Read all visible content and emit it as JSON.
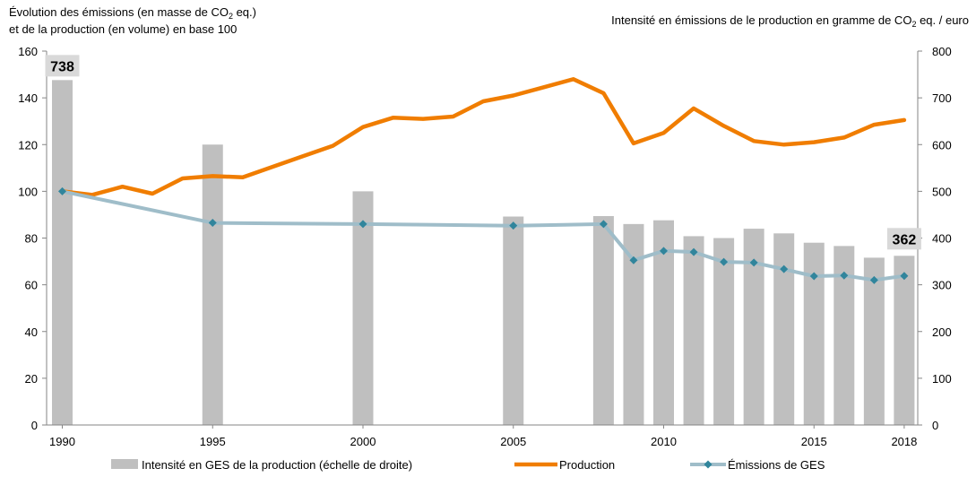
{
  "header": {
    "left_line1_pre": "Évolution  des émissions  (en masse de CO",
    "left_line1_sub": "2",
    "left_line1_post": " eq.)",
    "left_line2": "et de la production  (en volume)  en base 100",
    "right_pre": "Intensité  en émissions de le production  en gramme de CO",
    "right_sub": "2",
    "right_post": " eq.  / euro"
  },
  "chart_data": {
    "type": "bar+line",
    "x_tick_labels": [
      "1990",
      "1995",
      "2000",
      "2005",
      "2010",
      "2015",
      "2018"
    ],
    "left_axis": {
      "min": 0,
      "max": 160,
      "step": 20
    },
    "right_axis": {
      "min": 0,
      "max": 800,
      "step": 100
    },
    "bars": {
      "name": "Intensité en GES de la production (échelle de droite)",
      "axis": "right",
      "color": "#bfbfbf",
      "years": [
        1990,
        1995,
        2000,
        2005,
        2008,
        2009,
        2010,
        2011,
        2012,
        2013,
        2014,
        2015,
        2016,
        2017,
        2018
      ],
      "values": [
        738,
        600,
        500,
        446,
        447,
        430,
        438,
        404,
        400,
        420,
        410,
        390,
        383,
        358,
        362
      ]
    },
    "bar_callouts": [
      {
        "year": 1990,
        "label": "738"
      },
      {
        "year": 2018,
        "label": "362"
      }
    ],
    "lines": [
      {
        "name": "Production",
        "axis": "left",
        "color": "#f07d00",
        "markers": false,
        "years": [
          1990,
          1991,
          1992,
          1993,
          1994,
          1995,
          1996,
          1997,
          1998,
          1999,
          2000,
          2001,
          2002,
          2003,
          2004,
          2005,
          2006,
          2007,
          2008,
          2009,
          2010,
          2011,
          2012,
          2013,
          2014,
          2015,
          2016,
          2017,
          2018
        ],
        "values": [
          100,
          98.5,
          102,
          99,
          105.5,
          106.5,
          106,
          110.5,
          115,
          119.5,
          127.5,
          131.5,
          131,
          132,
          138.5,
          141,
          144.5,
          148,
          142,
          120.5,
          125,
          135.5,
          128,
          121.5,
          120,
          121,
          123,
          128.5,
          130.5
        ]
      },
      {
        "name": "Émissions de GES",
        "axis": "left",
        "color": "#9fbdc9",
        "marker_color": "#31859c",
        "markers": true,
        "years": [
          1990,
          1995,
          2000,
          2005,
          2008,
          2009,
          2010,
          2011,
          2012,
          2013,
          2014,
          2015,
          2016,
          2017,
          2018
        ],
        "values": [
          100,
          86.5,
          86,
          85.3,
          86,
          70.5,
          74.5,
          74,
          69.8,
          69.5,
          66.7,
          63.7,
          64,
          62,
          63.8
        ]
      }
    ],
    "legend": [
      {
        "label": "Intensité en GES de la production (échelle de droite)",
        "kind": "bar",
        "color": "#bfbfbf"
      },
      {
        "label": "Production",
        "kind": "line",
        "color": "#f07d00"
      },
      {
        "label": "Émissions de GES",
        "kind": "line-marker",
        "color": "#9fbdc9"
      }
    ],
    "legend_position": "bottom"
  }
}
